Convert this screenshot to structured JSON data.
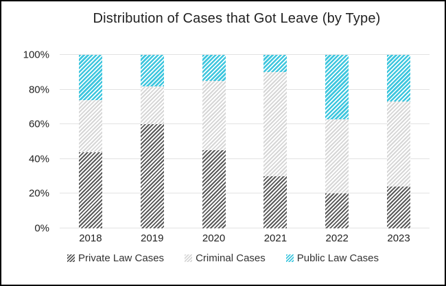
{
  "title": "Distribution of Cases that Got Leave (by Type)",
  "chart_data": {
    "type": "bar",
    "stacked": true,
    "percent": true,
    "title": "Distribution of Cases that Got Leave (by Type)",
    "xlabel": "",
    "ylabel": "",
    "categories": [
      "2018",
      "2019",
      "2020",
      "2021",
      "2022",
      "2023"
    ],
    "series": [
      {
        "name": "Private Law Cases",
        "color": "#595959",
        "pattern": "diagonal-hatch",
        "values": [
          44,
          60,
          45,
          30,
          20,
          24
        ]
      },
      {
        "name": "Criminal Cases",
        "color": "#d6d6d6",
        "pattern": "diagonal-hatch",
        "values": [
          30,
          22,
          40,
          60,
          43,
          49
        ]
      },
      {
        "name": "Public Law Cases",
        "color": "#3ec6de",
        "pattern": "diagonal-hatch",
        "values": [
          26,
          18,
          15,
          10,
          37,
          27
        ]
      }
    ],
    "ylim": [
      0,
      100
    ],
    "yticks": [
      {
        "value": 0,
        "label": "0%"
      },
      {
        "value": 20,
        "label": "20%"
      },
      {
        "value": 40,
        "label": "40%"
      },
      {
        "value": 60,
        "label": "60%"
      },
      {
        "value": 80,
        "label": "80%"
      },
      {
        "value": 100,
        "label": "100%"
      }
    ],
    "grid": true,
    "legend_position": "bottom"
  },
  "colors": {
    "background": "#ffffff",
    "border": "#000000",
    "grid_line": "#e2e2e2",
    "axis_text": "#1f1f1f",
    "legend_text": "#333333"
  }
}
